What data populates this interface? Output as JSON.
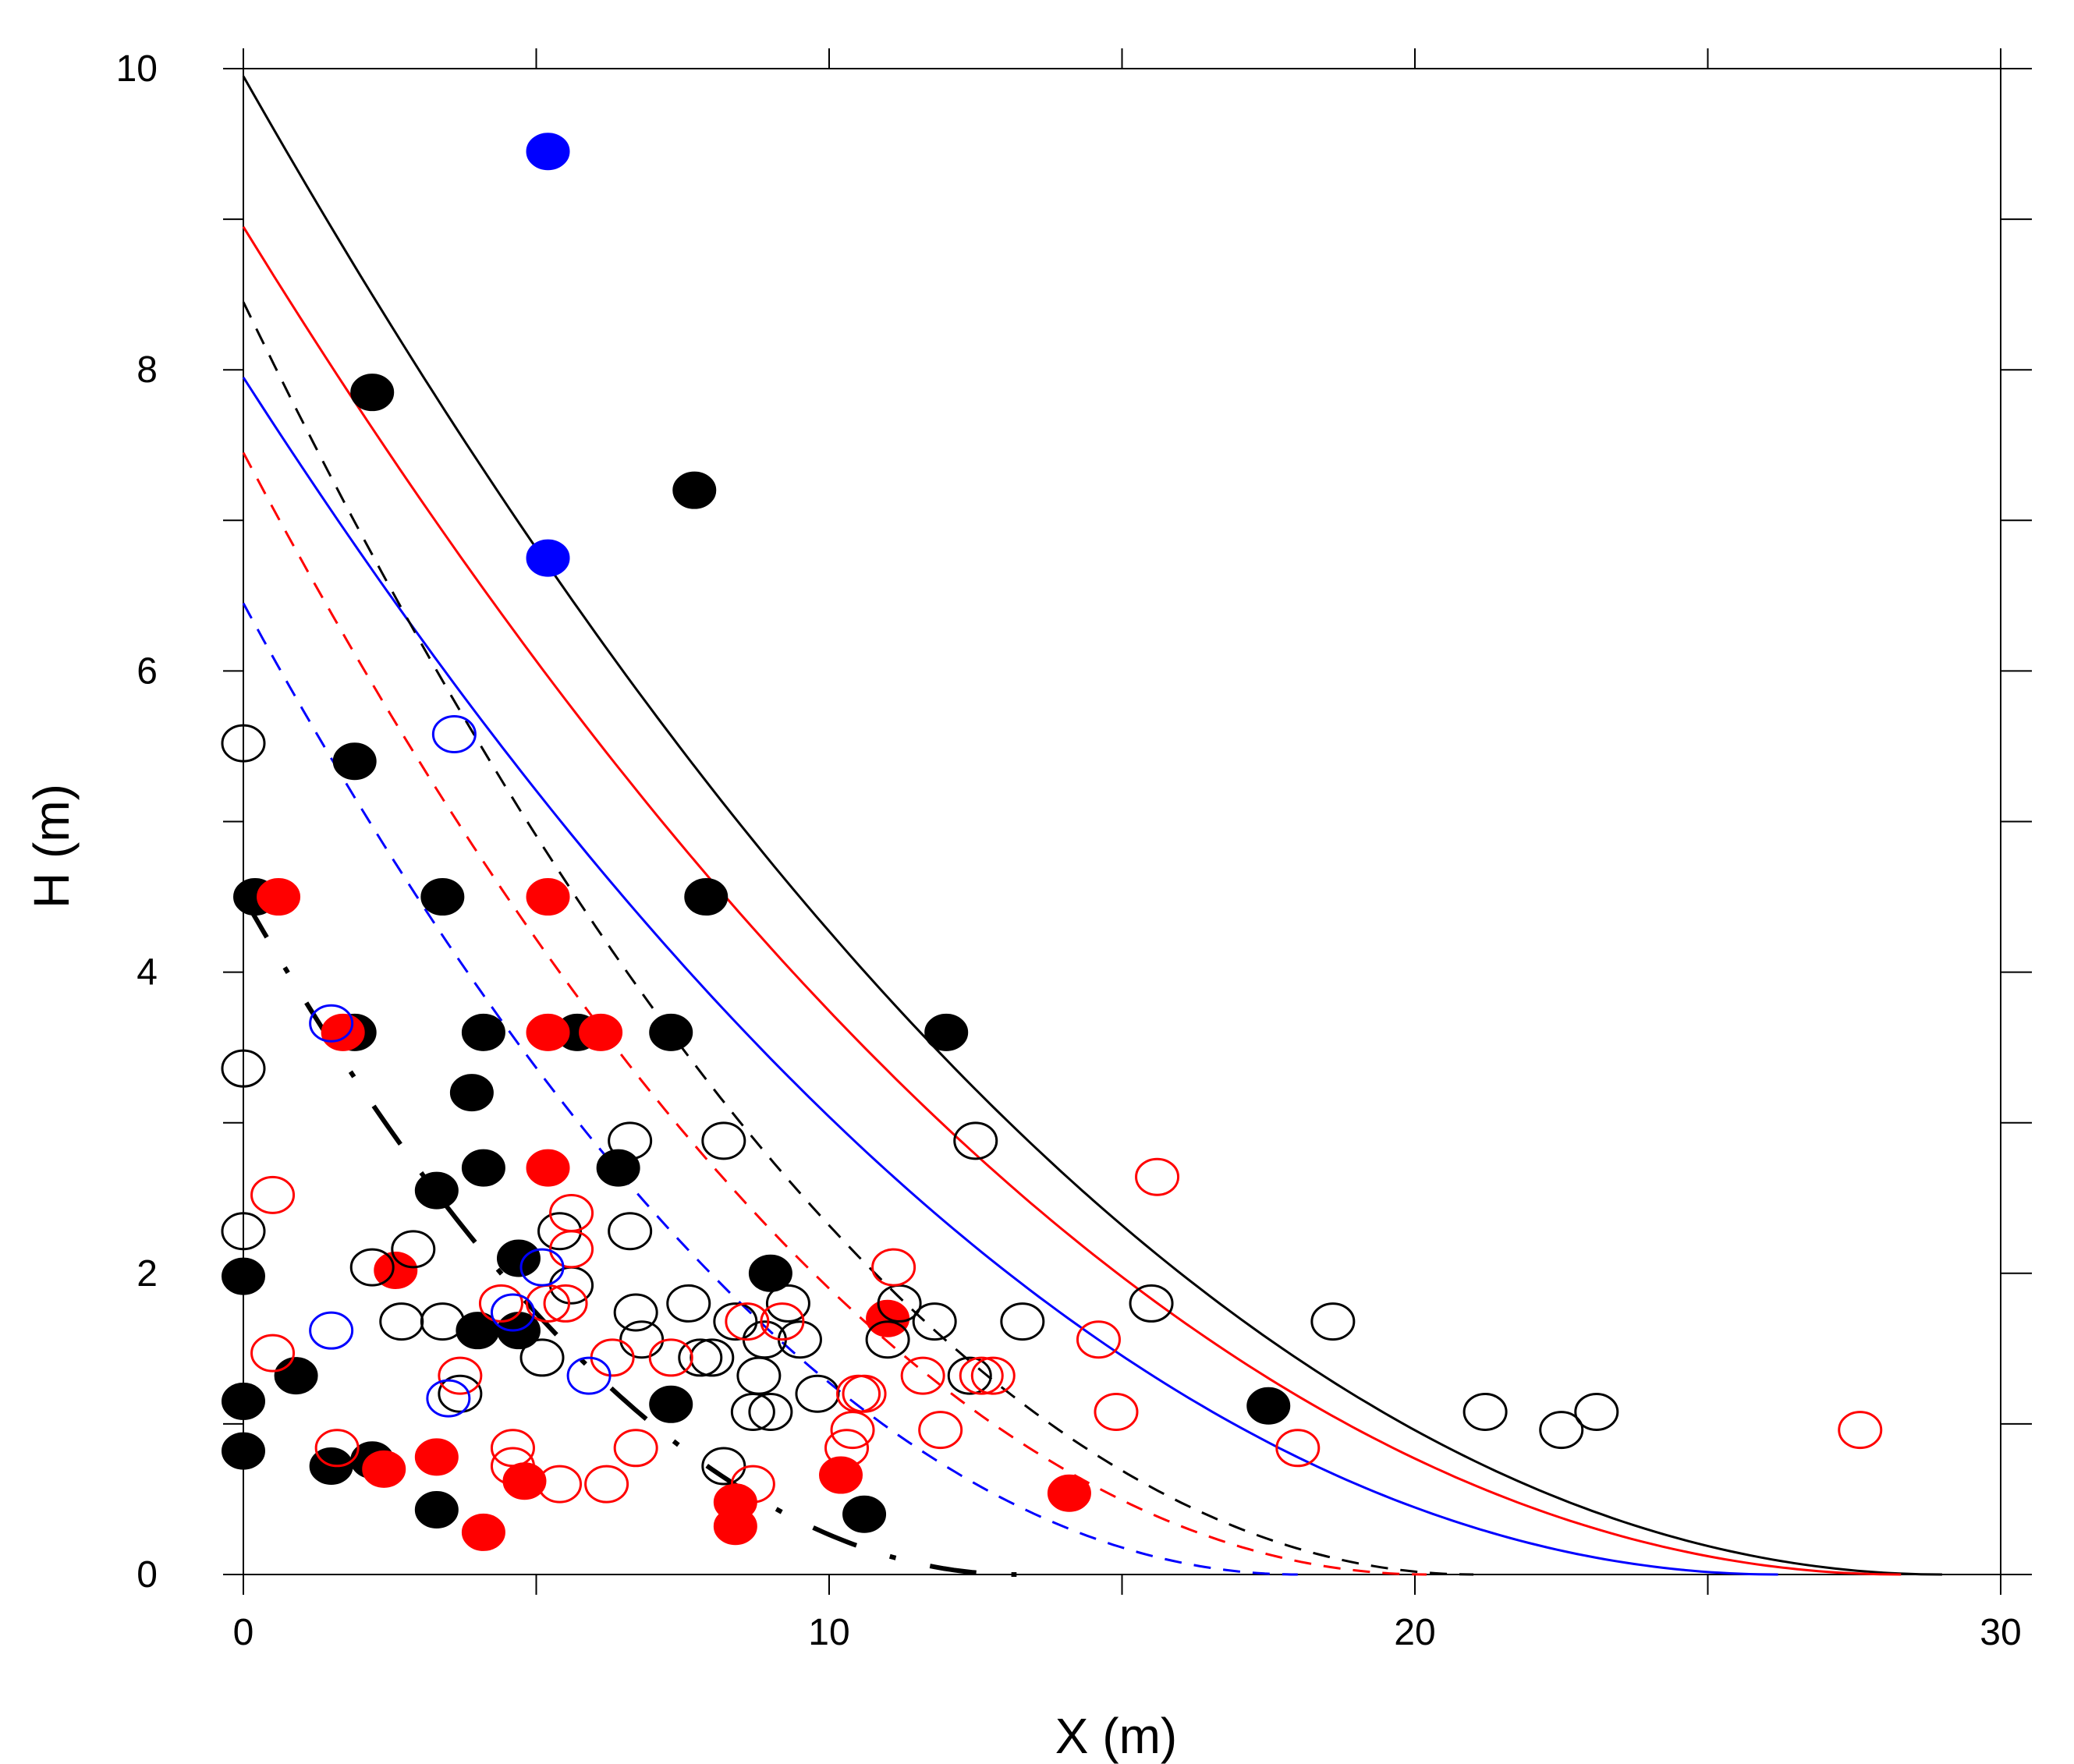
{
  "chart_data": {
    "type": "scatter",
    "title": "",
    "xlabel": "X (m)",
    "ylabel": "H (m)",
    "xlim": [
      0,
      30
    ],
    "ylim": [
      0,
      10
    ],
    "xticks": [
      0,
      10,
      20,
      30
    ],
    "yticks": [
      0,
      2,
      4,
      6,
      8,
      10
    ],
    "grid": false,
    "curves": [
      {
        "name": "curve-black-solid",
        "color": "#000000",
        "style": "solid",
        "h0": 9.95,
        "xmax": 29.0
      },
      {
        "name": "curve-red-solid",
        "color": "#ff0000",
        "style": "solid",
        "h0": 8.95,
        "xmax": 28.3
      },
      {
        "name": "curve-blue-solid",
        "color": "#0000ff",
        "style": "solid",
        "h0": 7.95,
        "xmax": 26.2
      },
      {
        "name": "curve-black-dashed",
        "color": "#000000",
        "style": "dashed",
        "h0": 8.45,
        "xmax": 21.0
      },
      {
        "name": "curve-red-dashed",
        "color": "#ff0000",
        "style": "dashed",
        "h0": 7.45,
        "xmax": 20.2
      },
      {
        "name": "curve-blue-dashed",
        "color": "#0000ff",
        "style": "dashed",
        "h0": 6.45,
        "xmax": 18.0
      },
      {
        "name": "curve-black-longdash",
        "color": "#000000",
        "style": "longdash",
        "h0": 4.5,
        "xmax": 13.2
      }
    ],
    "series": [
      {
        "name": "black-filled",
        "color": "#000000",
        "filled": true,
        "points": [
          [
            2.2,
            7.85
          ],
          [
            7.7,
            7.2
          ],
          [
            1.9,
            5.4
          ],
          [
            0.2,
            4.5
          ],
          [
            3.4,
            4.5
          ],
          [
            7.9,
            4.5
          ],
          [
            1.9,
            3.6
          ],
          [
            4.1,
            3.6
          ],
          [
            5.7,
            3.6
          ],
          [
            7.3,
            3.6
          ],
          [
            12.0,
            3.6
          ],
          [
            3.9,
            3.2
          ],
          [
            4.1,
            2.7
          ],
          [
            6.4,
            2.7
          ],
          [
            3.3,
            2.55
          ],
          [
            4.7,
            2.1
          ],
          [
            9.0,
            2.0
          ],
          [
            0.0,
            1.98
          ],
          [
            4.0,
            1.62
          ],
          [
            4.7,
            1.62
          ],
          [
            0.9,
            1.32
          ],
          [
            0.0,
            1.15
          ],
          [
            7.3,
            1.13
          ],
          [
            17.5,
            1.12
          ],
          [
            0.0,
            0.82
          ],
          [
            1.5,
            0.72
          ],
          [
            2.2,
            0.76
          ],
          [
            3.3,
            0.43
          ],
          [
            10.6,
            0.4
          ]
        ]
      },
      {
        "name": "red-filled",
        "color": "#ff0000",
        "filled": true,
        "points": [
          [
            0.6,
            4.5
          ],
          [
            5.2,
            4.5
          ],
          [
            1.7,
            3.6
          ],
          [
            5.2,
            3.6
          ],
          [
            6.1,
            3.6
          ],
          [
            5.2,
            2.7
          ],
          [
            2.6,
            2.02
          ],
          [
            11.0,
            1.7
          ],
          [
            2.4,
            0.7
          ],
          [
            3.3,
            0.78
          ],
          [
            4.8,
            0.62
          ],
          [
            10.2,
            0.66
          ],
          [
            8.4,
            0.48
          ],
          [
            8.4,
            0.32
          ],
          [
            14.1,
            0.54
          ],
          [
            4.1,
            0.28
          ]
        ]
      },
      {
        "name": "blue-filled",
        "color": "#0000ff",
        "filled": true,
        "points": [
          [
            5.2,
            9.45
          ],
          [
            5.2,
            6.75
          ]
        ]
      },
      {
        "name": "black-open",
        "color": "#000000",
        "filled": false,
        "points": [
          [
            0.0,
            5.52
          ],
          [
            0.0,
            3.36
          ],
          [
            0.0,
            2.28
          ],
          [
            6.6,
            2.88
          ],
          [
            8.2,
            2.88
          ],
          [
            12.5,
            2.88
          ],
          [
            5.4,
            2.28
          ],
          [
            6.6,
            2.28
          ],
          [
            2.2,
            2.04
          ],
          [
            2.9,
            2.16
          ],
          [
            5.6,
            1.92
          ],
          [
            2.7,
            1.68
          ],
          [
            3.4,
            1.68
          ],
          [
            6.7,
            1.74
          ],
          [
            7.6,
            1.8
          ],
          [
            8.4,
            1.68
          ],
          [
            9.3,
            1.8
          ],
          [
            11.2,
            1.8
          ],
          [
            11.8,
            1.68
          ],
          [
            13.3,
            1.68
          ],
          [
            15.5,
            1.8
          ],
          [
            18.6,
            1.68
          ],
          [
            6.8,
            1.56
          ],
          [
            8.9,
            1.56
          ],
          [
            9.5,
            1.56
          ],
          [
            11.0,
            1.56
          ],
          [
            7.8,
            1.44
          ],
          [
            8.0,
            1.44
          ],
          [
            5.1,
            1.44
          ],
          [
            8.8,
            1.32
          ],
          [
            12.4,
            1.32
          ],
          [
            3.7,
            1.2
          ],
          [
            9.8,
            1.2
          ],
          [
            8.7,
            1.08
          ],
          [
            9.0,
            1.08
          ],
          [
            21.2,
            1.08
          ],
          [
            23.1,
            1.08
          ],
          [
            22.5,
            0.96
          ],
          [
            8.2,
            0.72
          ]
        ]
      },
      {
        "name": "red-open",
        "color": "#ff0000",
        "filled": false,
        "points": [
          [
            15.6,
            2.64
          ],
          [
            0.5,
            2.52
          ],
          [
            5.6,
            2.4
          ],
          [
            5.6,
            2.16
          ],
          [
            11.1,
            2.04
          ],
          [
            4.4,
            1.8
          ],
          [
            5.2,
            1.8
          ],
          [
            5.5,
            1.8
          ],
          [
            8.6,
            1.68
          ],
          [
            9.2,
            1.68
          ],
          [
            14.6,
            1.56
          ],
          [
            0.5,
            1.47
          ],
          [
            6.3,
            1.44
          ],
          [
            7.3,
            1.44
          ],
          [
            3.7,
            1.32
          ],
          [
            11.6,
            1.32
          ],
          [
            12.6,
            1.32
          ],
          [
            12.8,
            1.32
          ],
          [
            10.5,
            1.2
          ],
          [
            10.6,
            1.2
          ],
          [
            14.9,
            1.08
          ],
          [
            10.4,
            0.96
          ],
          [
            11.9,
            0.96
          ],
          [
            27.6,
            0.96
          ],
          [
            1.6,
            0.84
          ],
          [
            4.6,
            0.84
          ],
          [
            6.7,
            0.84
          ],
          [
            10.3,
            0.84
          ],
          [
            18.0,
            0.84
          ],
          [
            4.6,
            0.72
          ],
          [
            5.4,
            0.6
          ],
          [
            6.2,
            0.6
          ],
          [
            8.7,
            0.6
          ]
        ]
      },
      {
        "name": "blue-open",
        "color": "#0000ff",
        "filled": false,
        "points": [
          [
            3.6,
            5.58
          ],
          [
            1.5,
            3.66
          ],
          [
            5.1,
            2.04
          ],
          [
            4.6,
            1.74
          ],
          [
            1.5,
            1.62
          ],
          [
            5.9,
            1.32
          ],
          [
            3.5,
            1.17
          ]
        ]
      }
    ]
  }
}
